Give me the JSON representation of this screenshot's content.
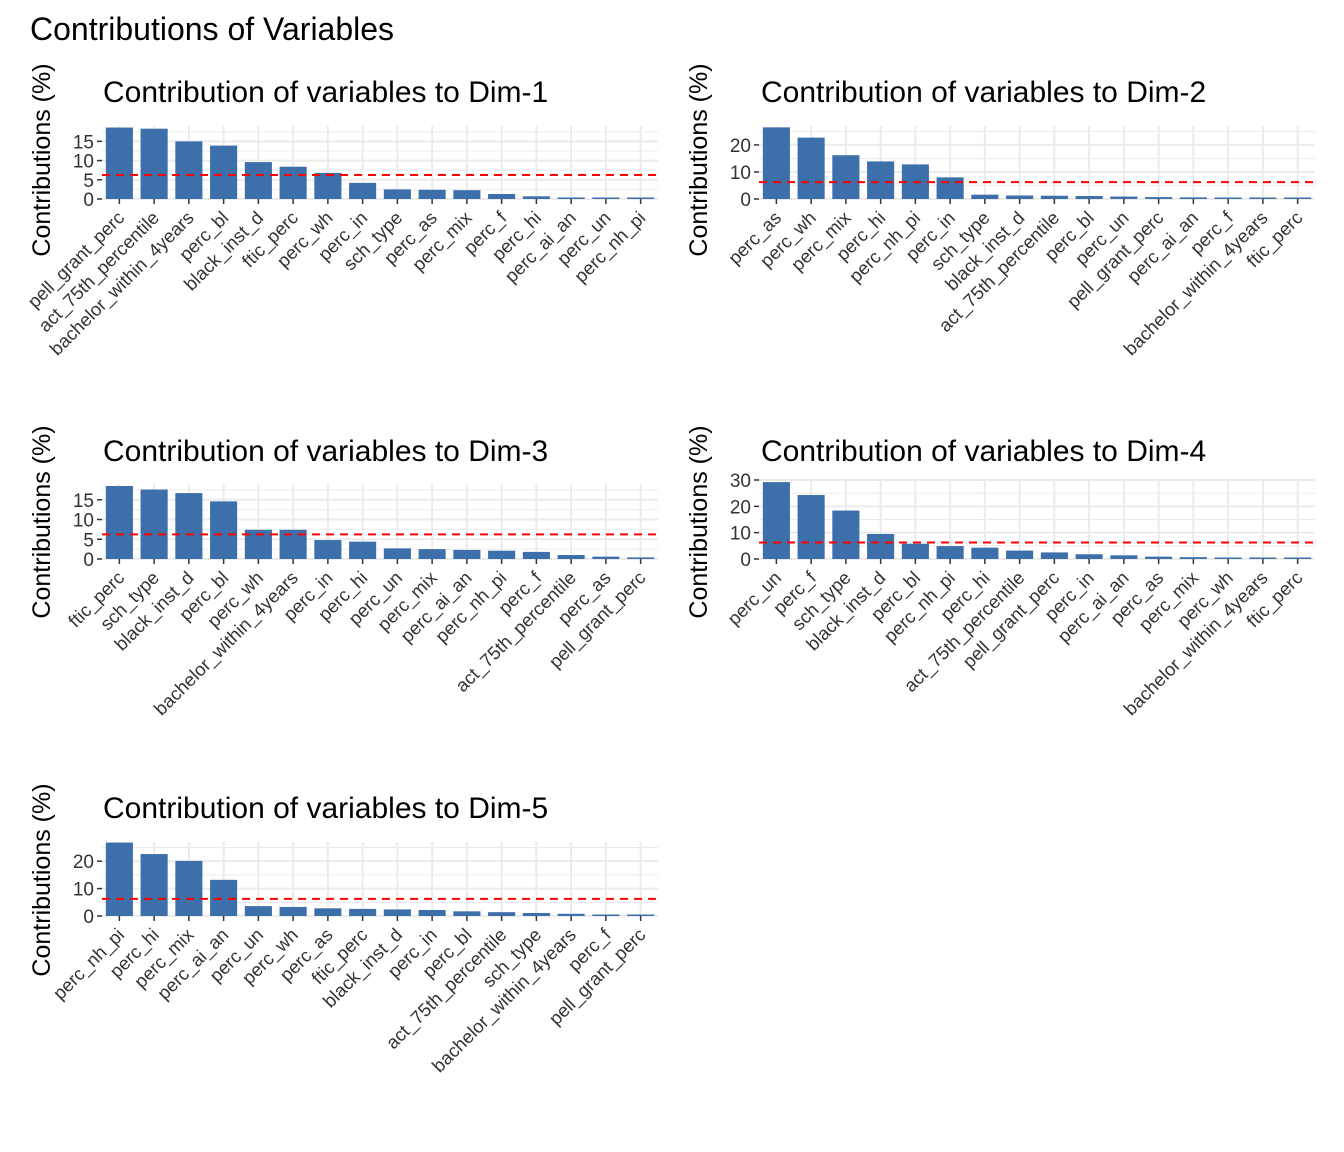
{
  "figure": {
    "title": "Contributions of Variables"
  },
  "colors": {
    "bar": "#3D6FAA",
    "reference_line": "#FF0000",
    "grid": "#EBEBEB",
    "background": "#FFFFFF"
  },
  "chart_data": [
    {
      "type": "bar",
      "title": "Contribution of variables to Dim-1",
      "xlabel": "",
      "ylabel": "Contributions (%)",
      "ylim": [
        0,
        19
      ],
      "yticks": [
        0,
        5,
        10,
        15
      ],
      "grid": true,
      "reference_line": 6.25,
      "categories": [
        "pell_grant_perc",
        "act_75th_percentile",
        "bachelor_within_4years",
        "perc_bl",
        "black_inst_d",
        "ftic_perc",
        "perc_wh",
        "perc_in",
        "sch_type",
        "perc_as",
        "perc_mix",
        "perc_f",
        "perc_hi",
        "perc_ai_an",
        "perc_un",
        "perc_nh_pi"
      ],
      "values": [
        18.6,
        18.3,
        15.0,
        13.9,
        9.6,
        8.4,
        6.8,
        4.2,
        2.5,
        2.4,
        2.3,
        1.3,
        0.7,
        0.4,
        0.3,
        0.2
      ]
    },
    {
      "type": "bar",
      "title": "Contribution of variables to Dim-2",
      "xlabel": "",
      "ylabel": "Contributions (%)",
      "ylim": [
        0,
        27
      ],
      "yticks": [
        0,
        10,
        20
      ],
      "grid": true,
      "reference_line": 6.25,
      "categories": [
        "perc_as",
        "perc_wh",
        "perc_mix",
        "perc_hi",
        "perc_nh_pi",
        "perc_in",
        "sch_type",
        "black_inst_d",
        "act_75th_percentile",
        "perc_bl",
        "perc_un",
        "pell_grant_perc",
        "perc_ai_an",
        "perc_f",
        "bachelor_within_4years",
        "ftic_perc"
      ],
      "values": [
        26.5,
        22.7,
        16.2,
        13.9,
        12.8,
        8.0,
        1.6,
        1.3,
        1.2,
        1.1,
        0.9,
        0.7,
        0.6,
        0.5,
        0.4,
        0.3
      ]
    },
    {
      "type": "bar",
      "title": "Contribution of variables to Dim-3",
      "xlabel": "",
      "ylabel": "Contributions (%)",
      "ylim": [
        0,
        19
      ],
      "yticks": [
        0,
        5,
        10,
        15
      ],
      "grid": true,
      "reference_line": 6.25,
      "categories": [
        "ftic_perc",
        "sch_type",
        "black_inst_d",
        "perc_bl",
        "perc_wh",
        "bachelor_within_4years",
        "perc_in",
        "perc_hi",
        "perc_un",
        "perc_mix",
        "perc_ai_an",
        "perc_nh_pi",
        "perc_f",
        "act_75th_percentile",
        "perc_as",
        "pell_grant_perc"
      ],
      "values": [
        18.5,
        17.6,
        16.7,
        14.6,
        7.4,
        7.4,
        4.8,
        4.4,
        2.7,
        2.5,
        2.3,
        2.1,
        1.8,
        1.0,
        0.6,
        0.4
      ]
    },
    {
      "type": "bar",
      "title": "Contribution of variables to Dim-4",
      "xlabel": "",
      "ylabel": "Contributions (%)",
      "ylim": [
        0,
        30
      ],
      "yticks": [
        0,
        10,
        20,
        30
      ],
      "grid": true,
      "reference_line": 6.25,
      "categories": [
        "perc_un",
        "perc_f",
        "sch_type",
        "black_inst_d",
        "perc_bl",
        "perc_nh_pi",
        "perc_hi",
        "act_75th_percentile",
        "pell_grant_perc",
        "perc_in",
        "perc_ai_an",
        "perc_as",
        "perc_mix",
        "perc_wh",
        "bachelor_within_4years",
        "ftic_perc"
      ],
      "values": [
        29.2,
        24.3,
        18.4,
        9.5,
        5.8,
        4.9,
        4.3,
        3.2,
        2.5,
        1.8,
        1.4,
        0.9,
        0.7,
        0.5,
        0.4,
        0.3
      ]
    },
    {
      "type": "bar",
      "title": "Contribution of variables to Dim-5",
      "xlabel": "",
      "ylabel": "Contributions (%)",
      "ylim": [
        0,
        27
      ],
      "yticks": [
        0,
        10,
        20
      ],
      "grid": true,
      "reference_line": 6.25,
      "categories": [
        "perc_nh_pi",
        "perc_hi",
        "perc_mix",
        "perc_ai_an",
        "perc_un",
        "perc_wh",
        "perc_as",
        "ftic_perc",
        "black_inst_d",
        "perc_in",
        "perc_bl",
        "act_75th_percentile",
        "sch_type",
        "bachelor_within_4years",
        "perc_f",
        "pell_grant_perc"
      ],
      "values": [
        26.8,
        22.6,
        20.1,
        13.2,
        3.6,
        3.3,
        2.8,
        2.6,
        2.4,
        2.2,
        1.7,
        1.4,
        1.1,
        0.8,
        0.5,
        0.3
      ]
    }
  ]
}
